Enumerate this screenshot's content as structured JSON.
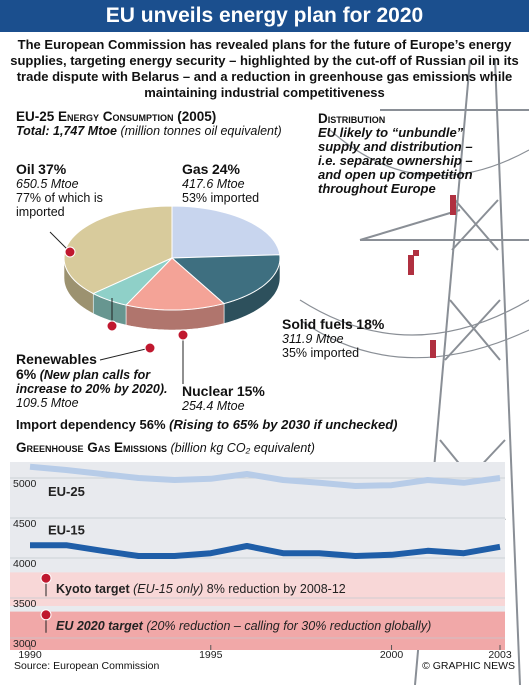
{
  "header": {
    "title": "EU unveils energy plan for 2020",
    "intro": "The European Commission has revealed plans for the future of Europe’s energy supplies, targeting energy security – highlighted by the cut-off of Russian oil in its trade dispute with Belarus – and a reduction in greenhouse gas emissions while maintaining industrial competitiveness"
  },
  "chart_data": [
    {
      "type": "pie",
      "title": "EU-25 Energy Consumption (2005)",
      "subtitle": "Total: 1,747 Mtoe",
      "subtitle_note": "(million tonnes oil equivalent)",
      "categories": [
        "Oil",
        "Gas",
        "Solid fuels",
        "Nuclear",
        "Renewables"
      ],
      "values": [
        37,
        24,
        18,
        15,
        6
      ],
      "value_labels": [
        "37%",
        "24%",
        "18%",
        "15%",
        "6%"
      ],
      "colors": [
        "#d8cb9c",
        "#c8d5ee",
        "#3e6f80",
        "#f4a397",
        "#8fd0c8"
      ],
      "details": [
        [
          "650.5 Mtoe",
          "77% of which is imported"
        ],
        [
          "417.6 Mtoe",
          "53% imported"
        ],
        [
          "311.9 Mtoe",
          "35% imported"
        ],
        [
          "254.4 Mtoe"
        ],
        [
          "(New plan calls for increase to 20% by 2020).",
          "109.5 Mtoe"
        ]
      ]
    },
    {
      "type": "line",
      "title": "Greenhouse Gas Emissions",
      "subtitle": "(billion kg CO₂ equivalent)",
      "x": [
        1990,
        1991,
        1992,
        1993,
        1994,
        1995,
        1996,
        1997,
        1998,
        1999,
        2000,
        2001,
        2002,
        2003
      ],
      "series": [
        {
          "name": "EU-25",
          "color": "#b7cce8",
          "values": [
            5140,
            5100,
            5050,
            5000,
            4975,
            4990,
            5050,
            4975,
            4940,
            4900,
            4910,
            4975,
            4940,
            5000
          ]
        },
        {
          "name": "EU-15",
          "color": "#1f5ea8",
          "values": [
            4160,
            4160,
            4090,
            4025,
            4025,
            4060,
            4150,
            4060,
            4060,
            4025,
            4040,
            4090,
            4060,
            4140
          ]
        }
      ],
      "xlim": [
        1990,
        2003
      ],
      "xticks": [
        1990,
        1995,
        2000,
        2003
      ],
      "ylim": [
        2850,
        5200
      ],
      "yticks": [
        3000,
        3500,
        4000,
        4500,
        5000
      ],
      "grid": true,
      "annotations": [
        {
          "label": "Kyoto target",
          "note": "(EU-15 only)",
          "text": "8% reduction by 2008-12",
          "yrange": [
            3400,
            3820
          ],
          "color": "#f8d7d7"
        },
        {
          "label": "EU 2020 target",
          "note": "(20% reduction – calling for 30% reduction globally)",
          "yrange": [
            2850,
            3330
          ],
          "color": "#f1a8a8"
        }
      ]
    }
  ],
  "import_dependency": {
    "label": "Import dependency 56%",
    "note": "(Rising to 65% by 2030 if unchecked)"
  },
  "distribution": {
    "title": "Distribution",
    "text": "EU likely to “unbundle” supply and distribution – i.e. separate ownership – and open up competition throughout Europe"
  },
  "footer": {
    "source": "Source: European Commission",
    "credit": "© GRAPHIC NEWS"
  }
}
